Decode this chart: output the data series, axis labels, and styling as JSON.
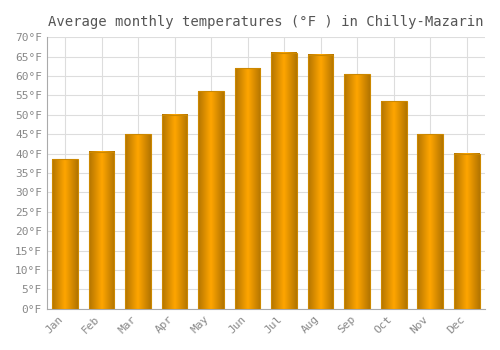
{
  "title": "Average monthly temperatures (°F ) in Chilly-Mazarin",
  "months": [
    "Jan",
    "Feb",
    "Mar",
    "Apr",
    "May",
    "Jun",
    "Jul",
    "Aug",
    "Sep",
    "Oct",
    "Nov",
    "Dec"
  ],
  "values": [
    38.5,
    40.5,
    45.0,
    50.0,
    56.0,
    62.0,
    66.0,
    65.5,
    60.5,
    53.5,
    45.0,
    40.0
  ],
  "bar_color": "#FFA500",
  "bar_edge_color": "#B8860B",
  "ylim": [
    0,
    70
  ],
  "ytick_step": 5,
  "background_color": "#FFFFFF",
  "grid_color": "#DDDDDD",
  "title_fontsize": 10,
  "tick_fontsize": 8,
  "bar_width": 0.7
}
